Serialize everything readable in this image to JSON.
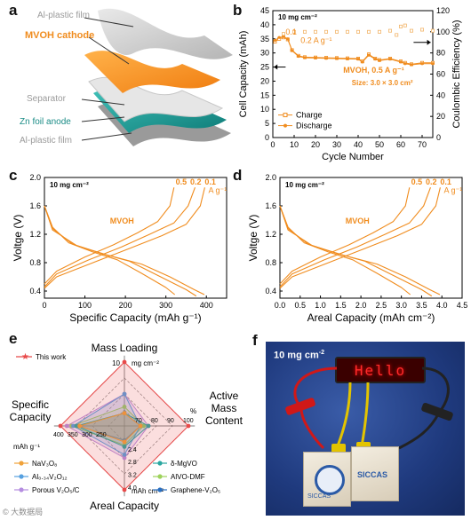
{
  "panels": {
    "a": {
      "label": "a",
      "layers": [
        "Al-plastic film",
        "MVOH cathode",
        "Separator",
        "Zn foil anode",
        "Al-plastic film"
      ]
    },
    "b": {
      "label": "b"
    },
    "c": {
      "label": "c"
    },
    "d": {
      "label": "d"
    },
    "e": {
      "label": "e"
    },
    "f": {
      "label": "f",
      "loading": "10 mg cm",
      "loading_sup": "-2",
      "led_text": "Hello",
      "left_cell_logo": "SICCAS",
      "right_cell_logo": "SICCAS"
    }
  },
  "watermark": "© 大数据局",
  "chart_data": [
    {
      "id": "b",
      "type": "scatter",
      "annotation": "10 mg cm⁻²",
      "xlabel": "Cycle Number",
      "ylabel": "Cell Capacity (mAh)",
      "y2label": "Coulombic Efficiency (%)",
      "xlim": [
        0,
        75
      ],
      "ylim": [
        0,
        45
      ],
      "y2lim": [
        0,
        120
      ],
      "xticks": [
        0,
        10,
        20,
        30,
        40,
        50,
        60,
        70
      ],
      "yticks": [
        0,
        5,
        10,
        15,
        20,
        25,
        30,
        35,
        40,
        45
      ],
      "y2ticks": [
        0,
        20,
        40,
        60,
        80,
        100,
        120
      ],
      "rate_labels": [
        "0.1",
        "0.2 A g⁻¹",
        "MVOH, 0.5 A g⁻¹"
      ],
      "size_note": "Size: 3.0 × 3.0 cm²",
      "legend": [
        "Charge",
        "Discharge"
      ],
      "legend_position": "bottom-left",
      "series": [
        {
          "name": "Charge",
          "x": [
            1,
            3,
            5,
            7,
            9,
            12,
            15,
            20,
            25,
            30,
            35,
            40,
            42,
            45,
            48,
            50,
            55,
            60,
            62,
            65,
            70,
            75
          ],
          "y": [
            34,
            35,
            35.5,
            34.8,
            31,
            29,
            28.5,
            28.4,
            28.3,
            28.2,
            28.1,
            28,
            27,
            29.5,
            28,
            27.5,
            28,
            27,
            26.5,
            26,
            26.5,
            26.5
          ]
        },
        {
          "name": "Discharge",
          "x": [
            1,
            3,
            5,
            7,
            9,
            12,
            15,
            20,
            25,
            30,
            35,
            40,
            42,
            45,
            48,
            50,
            55,
            60,
            62,
            65,
            70,
            75
          ],
          "y": [
            34.5,
            35.5,
            35.8,
            35,
            30.8,
            28.8,
            28.3,
            28.2,
            28.1,
            28,
            27.9,
            27.8,
            26.8,
            29.2,
            27.8,
            27.3,
            27.8,
            26.8,
            26.2,
            25.8,
            26.2,
            26.2
          ]
        },
        {
          "name": "Coulombic Efficiency",
          "x": [
            5,
            10,
            15,
            20,
            25,
            30,
            35,
            40,
            45,
            50,
            55,
            58,
            60,
            62,
            65,
            70,
            75
          ],
          "y": [
            98,
            100,
            100,
            100,
            100,
            100,
            100,
            100,
            100,
            100,
            101,
            97,
            105,
            106,
            101,
            102,
            101
          ]
        }
      ]
    },
    {
      "id": "c",
      "type": "line",
      "annotation": "10 mg cm⁻²",
      "xlabel": "Specific Capacity (mAh g⁻¹)",
      "ylabel": "Voltge (V)",
      "xlim": [
        0,
        450
      ],
      "ylim": [
        0.3,
        2.0
      ],
      "xticks": [
        0,
        100,
        200,
        300,
        400
      ],
      "yticks": [
        0.4,
        0.8,
        1.2,
        1.6,
        2.0
      ],
      "series_label": "MVOH",
      "rate_labels": [
        "0.5",
        "0.2",
        "0.1"
      ],
      "rate_unit": "A g⁻¹",
      "series": [
        {
          "name": "0.5 discharge",
          "x": [
            0,
            20,
            60,
            120,
            180,
            240,
            300,
            322
          ],
          "y": [
            1.6,
            1.3,
            1.08,
            0.95,
            0.84,
            0.65,
            0.45,
            0.35
          ]
        },
        {
          "name": "0.2 discharge",
          "x": [
            0,
            20,
            70,
            140,
            210,
            280,
            350,
            375
          ],
          "y": [
            1.6,
            1.28,
            1.06,
            0.93,
            0.82,
            0.62,
            0.42,
            0.33
          ]
        },
        {
          "name": "0.1 discharge",
          "x": [
            0,
            20,
            80,
            160,
            240,
            310,
            370,
            395
          ],
          "y": [
            1.6,
            1.26,
            1.04,
            0.9,
            0.78,
            0.6,
            0.42,
            0.35
          ]
        },
        {
          "name": "0.5 charge",
          "x": [
            0,
            30,
            100,
            170,
            230,
            280,
            310,
            320
          ],
          "y": [
            0.5,
            0.68,
            0.88,
            1.05,
            1.22,
            1.38,
            1.6,
            1.86
          ]
        },
        {
          "name": "0.2 charge",
          "x": [
            0,
            30,
            110,
            190,
            260,
            320,
            355,
            372
          ],
          "y": [
            0.46,
            0.64,
            0.84,
            1.02,
            1.2,
            1.36,
            1.6,
            1.86
          ]
        },
        {
          "name": "0.1 charge",
          "x": [
            0,
            30,
            120,
            210,
            290,
            350,
            385,
            396
          ],
          "y": [
            0.44,
            0.6,
            0.8,
            1.0,
            1.18,
            1.34,
            1.6,
            1.86
          ]
        }
      ]
    },
    {
      "id": "d",
      "type": "line",
      "annotation": "10 mg cm⁻²",
      "xlabel": "Areal Capacity (mAh cm⁻²)",
      "ylabel": "Voltge (V)",
      "xlim": [
        0,
        4.5
      ],
      "ylim": [
        0.3,
        2.0
      ],
      "xticks": [
        0,
        0.5,
        1.0,
        1.5,
        2.0,
        2.5,
        3.0,
        3.5,
        4.0,
        4.5
      ],
      "yticks": [
        0.4,
        0.8,
        1.2,
        1.6,
        2.0
      ],
      "series_label": "MVOH",
      "rate_labels": [
        "0.5",
        "0.2",
        "0.1"
      ],
      "rate_unit": "A g⁻¹",
      "series": [
        {
          "name": "0.5 discharge",
          "x": [
            0,
            0.2,
            0.6,
            1.2,
            1.8,
            2.4,
            3.0,
            3.22
          ],
          "y": [
            1.6,
            1.3,
            1.08,
            0.95,
            0.84,
            0.65,
            0.45,
            0.35
          ]
        },
        {
          "name": "0.2 discharge",
          "x": [
            0,
            0.2,
            0.7,
            1.4,
            2.1,
            2.8,
            3.5,
            3.75
          ],
          "y": [
            1.6,
            1.28,
            1.06,
            0.93,
            0.82,
            0.62,
            0.42,
            0.33
          ]
        },
        {
          "name": "0.1 discharge",
          "x": [
            0,
            0.2,
            0.8,
            1.6,
            2.4,
            3.1,
            3.7,
            3.95
          ],
          "y": [
            1.6,
            1.26,
            1.04,
            0.9,
            0.78,
            0.6,
            0.42,
            0.35
          ]
        },
        {
          "name": "0.5 charge",
          "x": [
            0,
            0.3,
            1.0,
            1.7,
            2.3,
            2.8,
            3.1,
            3.2
          ],
          "y": [
            0.5,
            0.68,
            0.88,
            1.05,
            1.22,
            1.38,
            1.6,
            1.86
          ]
        },
        {
          "name": "0.2 charge",
          "x": [
            0,
            0.3,
            1.1,
            1.9,
            2.6,
            3.2,
            3.55,
            3.72
          ],
          "y": [
            0.46,
            0.64,
            0.84,
            1.02,
            1.2,
            1.36,
            1.6,
            1.86
          ]
        },
        {
          "name": "0.1 charge",
          "x": [
            0,
            0.3,
            1.2,
            2.1,
            2.9,
            3.5,
            3.85,
            3.96
          ],
          "y": [
            0.44,
            0.6,
            0.8,
            1.0,
            1.18,
            1.34,
            1.6,
            1.86
          ]
        }
      ]
    },
    {
      "id": "e",
      "type": "radar",
      "axes": [
        {
          "name": "Mass Loading",
          "unit": "mg cm⁻²",
          "ticks": [
            "10"
          ]
        },
        {
          "name": "Active Mass Content",
          "unit": "%",
          "ticks": [
            "70",
            "80",
            "90",
            "100"
          ]
        },
        {
          "name": "Areal Capacity",
          "unit": "mAh cm⁻²",
          "ticks": [
            "2.4",
            "2.8",
            "3.2",
            "4.0"
          ]
        },
        {
          "name": "Specific Capacity",
          "unit": "mAh g⁻¹",
          "ticks": [
            "400",
            "350",
            "300",
            "250"
          ]
        }
      ],
      "legend_position": "bottom",
      "series": [
        {
          "name": "This work",
          "color": "#e84a4a",
          "values": [
            10,
            100,
            4.0,
            400
          ]
        },
        {
          "name": "NaV₃O₈",
          "color": "#f0a23a",
          "values": [
            2,
            70,
            1.0,
            280
          ]
        },
        {
          "name": "δ-MgVO",
          "color": "#2aa7a0",
          "values": [
            2,
            75,
            1.3,
            300
          ]
        },
        {
          "name": "Al₀.₃₄V₂O₁₂",
          "color": "#56a0e0",
          "values": [
            5,
            70,
            1.8,
            320
          ]
        },
        {
          "name": "AlVO-DMF",
          "color": "#9ed35c",
          "values": [
            3,
            72,
            1.2,
            330
          ]
        },
        {
          "name": "Porous V₂O₅/C",
          "color": "#b58de0",
          "values": [
            5,
            75,
            2.0,
            360
          ]
        },
        {
          "name": "Graphene-V₂O₅",
          "color": "#2a6fc0",
          "values": [
            2,
            70,
            0.9,
            290
          ]
        }
      ]
    }
  ]
}
